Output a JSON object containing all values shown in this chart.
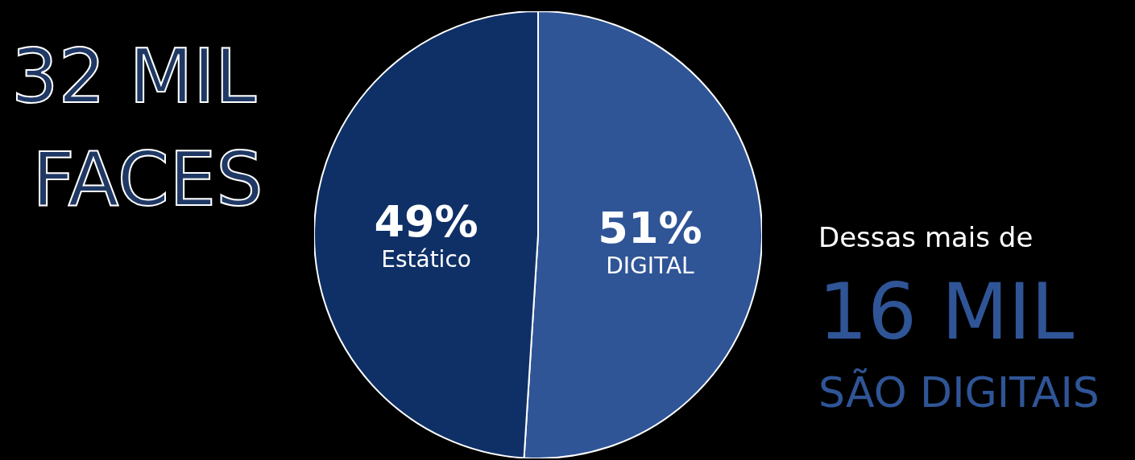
{
  "chart_data": {
    "type": "pie",
    "categories": [
      "DIGITAL",
      "Estático"
    ],
    "values": [
      51,
      49
    ],
    "colors": [
      "#2f5597",
      "#0f3066"
    ],
    "value_labels": [
      "51%",
      "49%"
    ],
    "annotations": [
      "32 MIL",
      "FACES",
      "Dessas mais de",
      "16 MIL",
      "SÃO DIGITAIS"
    ]
  }
}
